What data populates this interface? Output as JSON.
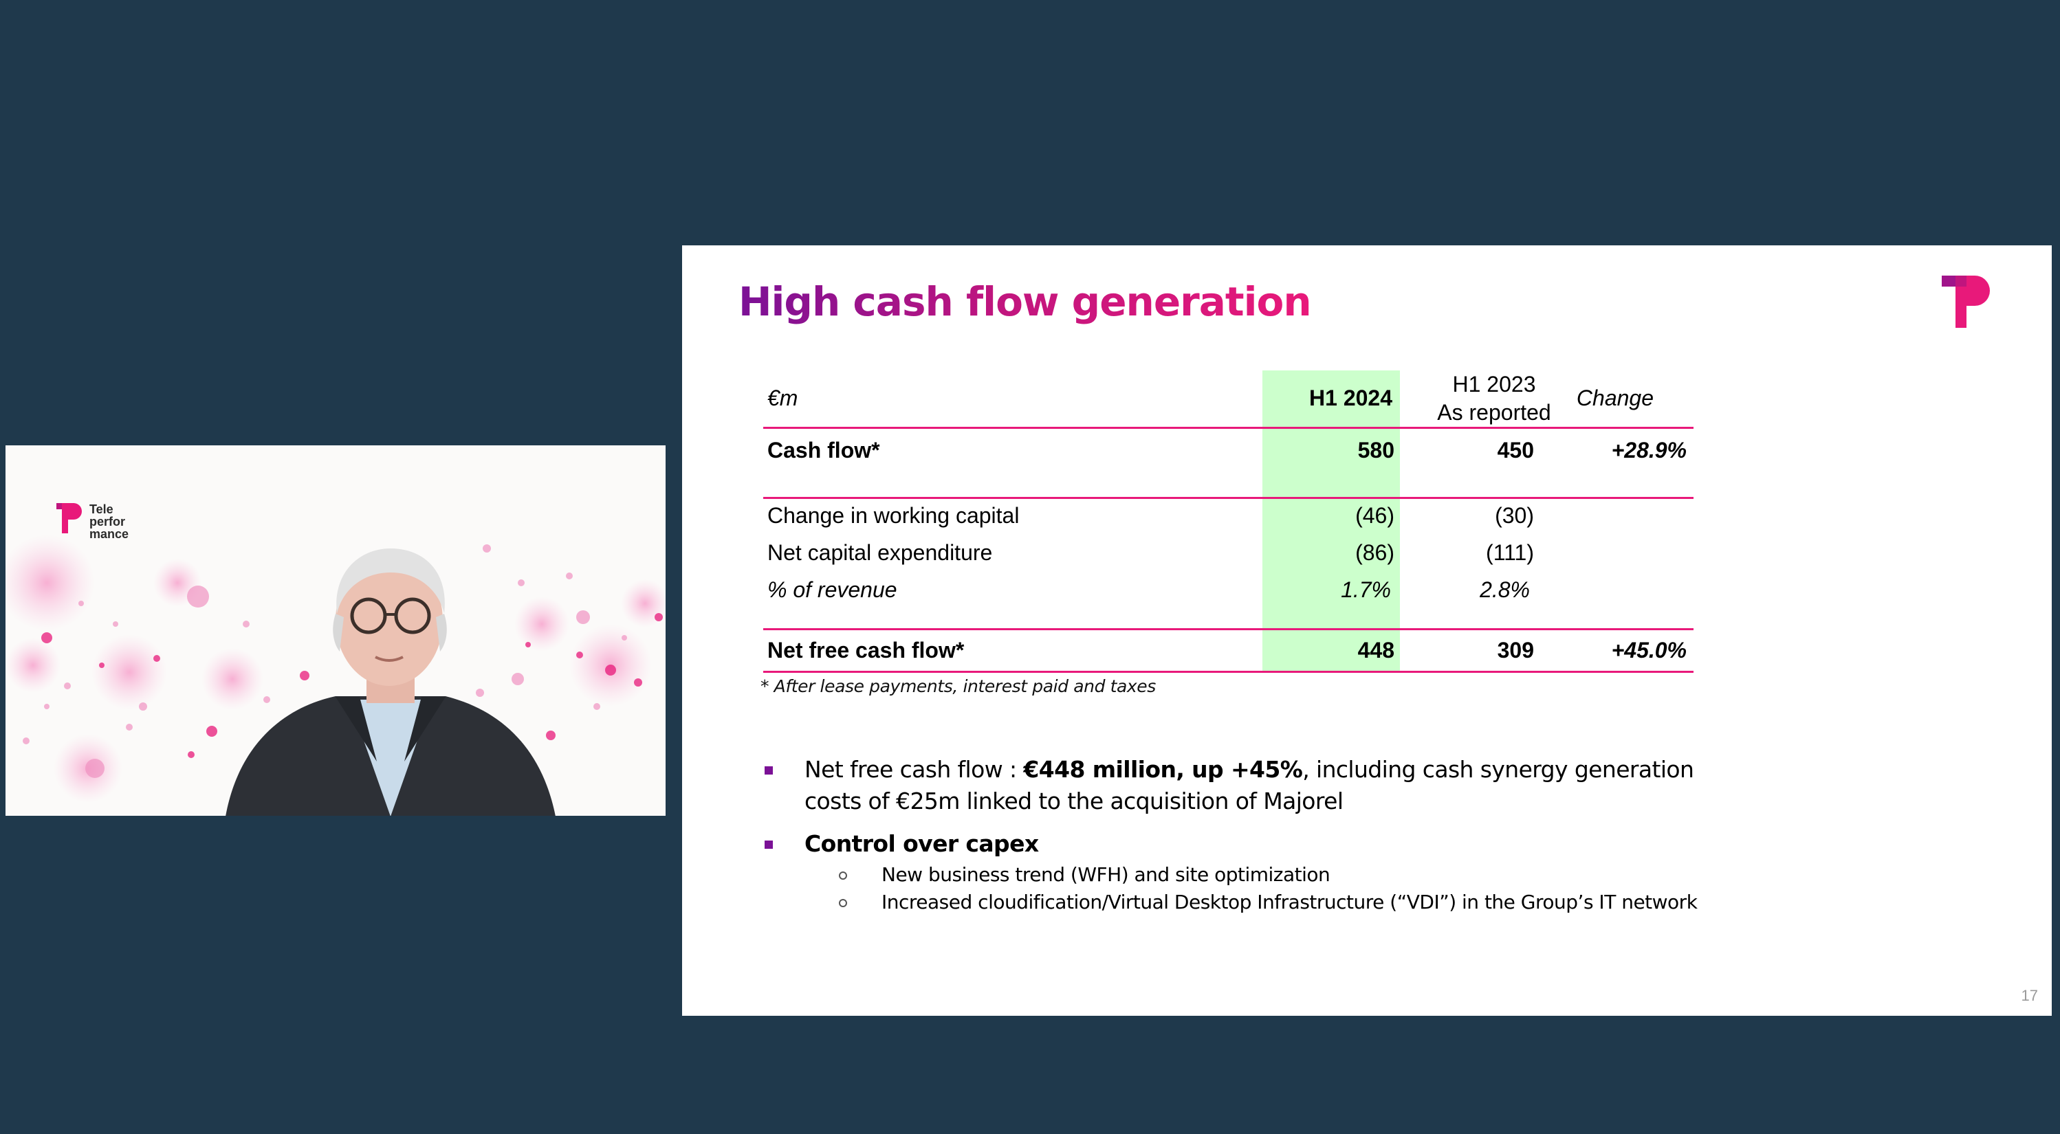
{
  "video": {
    "logo_text": "Tele\nperfor\nmance"
  },
  "slide": {
    "title": "High cash flow generation",
    "page_number": "17",
    "table": {
      "headers": {
        "label": "€m",
        "h1_2024": "H1 2024",
        "h1_2023_line1": "H1 2023",
        "h1_2023_line2": "As reported",
        "change": "Change"
      },
      "rows": [
        {
          "label": "Cash flow*",
          "h1_2024": "580",
          "h1_2023": "450",
          "change": "+28.9%"
        },
        {
          "label": "Change in working capital",
          "h1_2024": "(46)",
          "h1_2023": "(30)",
          "change": ""
        },
        {
          "label": "Net capital expenditure",
          "h1_2024": "(86)",
          "h1_2023": "(111)",
          "change": ""
        },
        {
          "label": "% of revenue",
          "h1_2024": "1.7%",
          "h1_2023": "2.8%",
          "change": ""
        },
        {
          "label": "Net free cash flow*",
          "h1_2024": "448",
          "h1_2023": "309",
          "change": "+45.0%"
        }
      ],
      "footnote": "* After lease payments, interest paid and taxes"
    },
    "bullets": [
      {
        "prefix": "Net free cash flow : ",
        "bold": "€448 million, up +45%",
        "suffix": ", including cash synergy generation costs of €25m linked to the acquisition of Majorel"
      },
      {
        "bold": "Control over capex",
        "subitems": [
          "New business trend (WFH) and site optimization",
          "Increased cloudification/Virtual Desktop Infrastructure (“VDI”) in the Group’s IT network"
        ]
      }
    ]
  },
  "colors": {
    "background": "#1f394c",
    "brand_magenta": "#e8197a",
    "brand_purple": "#7b1196",
    "highlight_green": "#ccffcc"
  }
}
